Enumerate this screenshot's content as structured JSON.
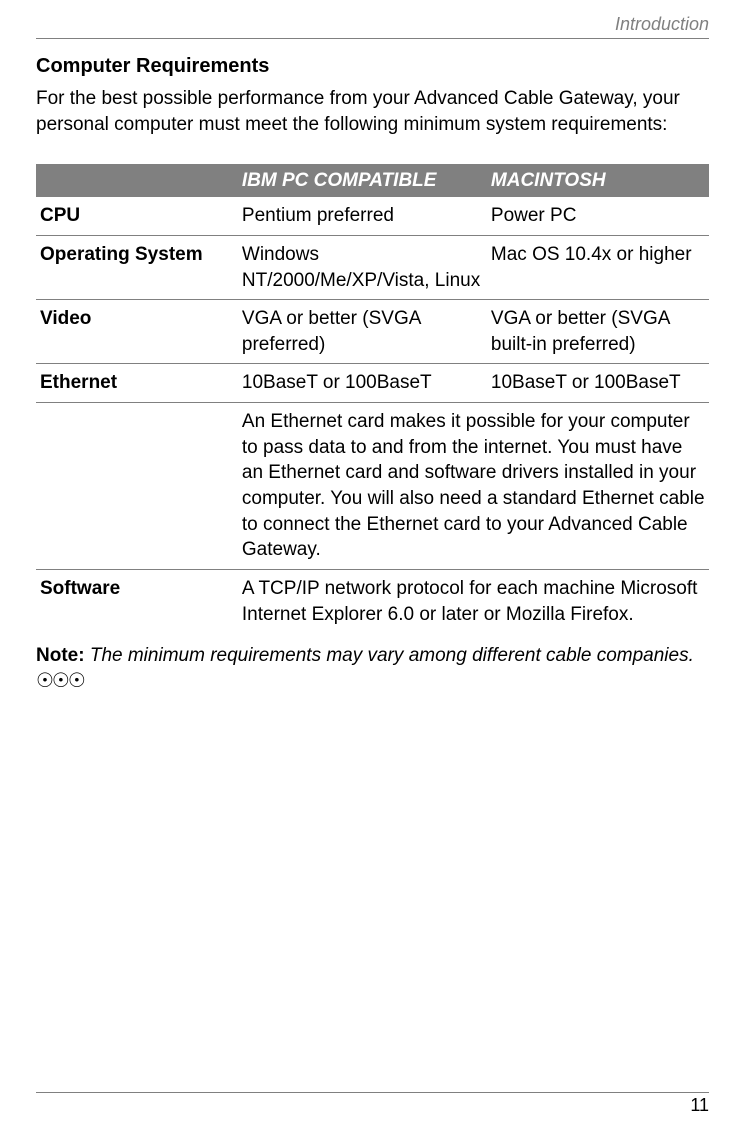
{
  "runningHead": "Introduction",
  "heading": "Computer Requirements",
  "intro": "For the best possible performance from your Advanced Cable Gateway, your personal computer must meet the following minimum system requirements:",
  "table": {
    "headers": {
      "blank": "",
      "pc": "IBM PC COMPATIBLE",
      "mac": "MACINTOSH"
    },
    "rows": {
      "cpu": {
        "label": "CPU",
        "pc": "Pentium preferred",
        "mac": "Power PC"
      },
      "os": {
        "label": "Operating System",
        "pc": "Windows NT/2000/Me/XP/Vista, Linux",
        "mac": "Mac OS 10.4x or higher"
      },
      "video": {
        "label": "Video",
        "pc": "VGA or better (SVGA preferred)",
        "mac": "VGA or better (SVGA built-in preferred)"
      },
      "eth": {
        "label": "Ethernet",
        "pc": "10BaseT or 100BaseT",
        "mac": "10BaseT or 100BaseT"
      },
      "ethNote": "An Ethernet card makes it possible for your computer to pass data to and from the internet. You must have an Ethernet card and software drivers installed in your computer. You will also need a standard Ethernet cable to connect the Ethernet card to your Advanced Cable Gateway.",
      "software": {
        "label": "Software",
        "text": "A TCP/IP network protocol for each machine Microsoft Internet Explorer 6.0 or later or Mozilla Firefox."
      }
    }
  },
  "note": {
    "label": "Note:",
    "text": " The minimum requirements may vary among different cable companies."
  },
  "dots": "☉☉☉",
  "pageNumber": "11",
  "style": {
    "pageWidth": 745,
    "pageHeight": 1135,
    "bodyFontSize": 19,
    "headingFontSize": 20,
    "ruleColor": "#808080",
    "headerBg": "#808080",
    "headerFg": "#ffffff",
    "textColor": "#000000",
    "bgColor": "#ffffff",
    "colWidths": {
      "label": "30%",
      "pc": "37%",
      "mac": "33%"
    }
  }
}
